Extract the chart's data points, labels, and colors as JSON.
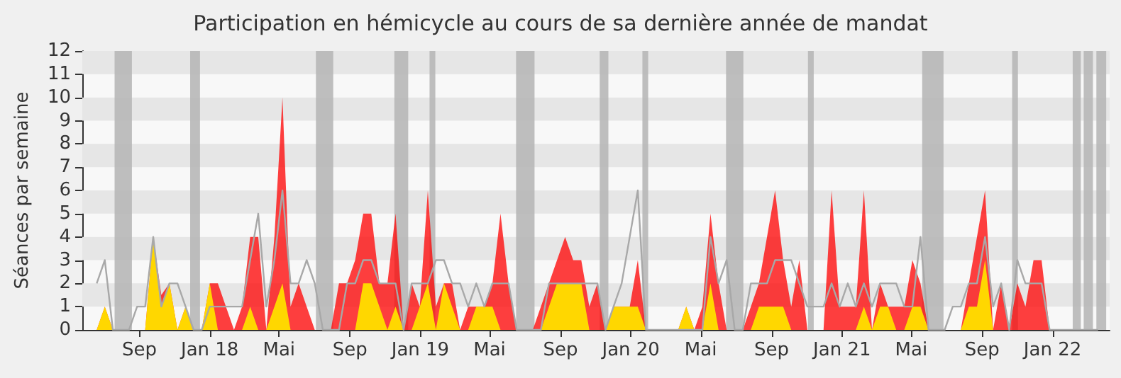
{
  "chart_data": {
    "type": "area",
    "title": "Participation en hémicycle au cours de sa dernière année de mandat",
    "ylabel": "Séances par semaine",
    "xlim": [
      "2017-05-25",
      "2022-04-10"
    ],
    "xticks": [
      {
        "value": "2017-09-01",
        "label": "Sep"
      },
      {
        "value": "2018-01-01",
        "label": "Jan 18"
      },
      {
        "value": "2018-05-01",
        "label": "Mai"
      },
      {
        "value": "2018-09-01",
        "label": "Sep"
      },
      {
        "value": "2019-01-01",
        "label": "Jan 19"
      },
      {
        "value": "2019-05-01",
        "label": "Mai"
      },
      {
        "value": "2019-09-01",
        "label": "Sep"
      },
      {
        "value": "2020-01-01",
        "label": "Jan 20"
      },
      {
        "value": "2020-05-01",
        "label": "Mai"
      },
      {
        "value": "2020-09-01",
        "label": "Sep"
      },
      {
        "value": "2021-01-01",
        "label": "Jan 21"
      },
      {
        "value": "2021-05-01",
        "label": "Mai"
      },
      {
        "value": "2021-09-01",
        "label": "Sep"
      },
      {
        "value": "2022-01-01",
        "label": "Jan 22"
      }
    ],
    "ylim": [
      0,
      12
    ],
    "yticks": [
      0,
      1,
      2,
      3,
      4,
      5,
      6,
      7,
      8,
      9,
      10,
      11,
      12
    ],
    "grid": false,
    "marker": "none",
    "x": [
      "2017-06-19",
      "2017-07-03",
      "2017-07-17",
      "2017-07-31",
      "2017-08-14",
      "2017-08-28",
      "2017-09-11",
      "2017-09-25",
      "2017-10-09",
      "2017-10-23",
      "2017-11-06",
      "2017-11-20",
      "2017-12-04",
      "2017-12-18",
      "2018-01-01",
      "2018-01-15",
      "2018-01-29",
      "2018-02-12",
      "2018-02-26",
      "2018-03-12",
      "2018-03-26",
      "2018-04-09",
      "2018-04-23",
      "2018-05-07",
      "2018-05-21",
      "2018-06-04",
      "2018-06-18",
      "2018-07-02",
      "2018-07-16",
      "2018-07-30",
      "2018-08-13",
      "2018-08-27",
      "2018-09-10",
      "2018-09-24",
      "2018-10-08",
      "2018-10-22",
      "2018-11-05",
      "2018-11-19",
      "2018-12-03",
      "2018-12-17",
      "2018-12-31",
      "2019-01-14",
      "2019-01-28",
      "2019-02-11",
      "2019-02-25",
      "2019-03-11",
      "2019-03-25",
      "2019-04-08",
      "2019-04-22",
      "2019-05-06",
      "2019-05-20",
      "2019-06-03",
      "2019-06-17",
      "2019-07-01",
      "2019-07-15",
      "2019-07-29",
      "2019-08-12",
      "2019-08-26",
      "2019-09-09",
      "2019-09-23",
      "2019-10-07",
      "2019-10-21",
      "2019-11-04",
      "2019-11-18",
      "2019-12-02",
      "2019-12-16",
      "2019-12-30",
      "2020-01-13",
      "2020-01-27",
      "2020-02-10",
      "2020-02-24",
      "2020-03-09",
      "2020-03-23",
      "2020-04-06",
      "2020-04-20",
      "2020-05-04",
      "2020-05-18",
      "2020-06-01",
      "2020-06-15",
      "2020-06-29",
      "2020-07-13",
      "2020-07-27",
      "2020-08-10",
      "2020-08-24",
      "2020-09-07",
      "2020-09-21",
      "2020-10-05",
      "2020-10-19",
      "2020-11-02",
      "2020-11-16",
      "2020-11-30",
      "2020-12-14",
      "2020-12-28",
      "2021-01-11",
      "2021-01-25",
      "2021-02-08",
      "2021-02-22",
      "2021-03-08",
      "2021-03-22",
      "2021-04-05",
      "2021-04-19",
      "2021-05-03",
      "2021-05-17",
      "2021-05-31",
      "2021-06-14",
      "2021-06-28",
      "2021-07-12",
      "2021-07-26",
      "2021-08-09",
      "2021-08-23",
      "2021-09-06",
      "2021-09-20",
      "2021-10-04",
      "2021-10-18",
      "2021-11-01",
      "2021-11-15",
      "2021-11-29",
      "2021-12-13",
      "2021-12-27",
      "2022-01-10",
      "2022-01-24",
      "2022-02-07",
      "2022-02-21",
      "2022-03-07",
      "2022-03-21"
    ],
    "series": [
      {
        "type": "line",
        "color": "#a8a8a8",
        "values": [
          2,
          3,
          0,
          0,
          0,
          1,
          1,
          4,
          1,
          2,
          2,
          1,
          0,
          0,
          1,
          1,
          1,
          1,
          1,
          3,
          5,
          1,
          3,
          6,
          2,
          2,
          3,
          2,
          0,
          0,
          0,
          2,
          2,
          3,
          3,
          2,
          2,
          2,
          0,
          2,
          2,
          2,
          3,
          3,
          2,
          2,
          1,
          2,
          1,
          2,
          2,
          2,
          0,
          0,
          0,
          0,
          2,
          2,
          2,
          2,
          2,
          2,
          2,
          0,
          1,
          2,
          4,
          6,
          0,
          0,
          0,
          0,
          0,
          0,
          0,
          0,
          4,
          2,
          3,
          0,
          0,
          2,
          2,
          2,
          3,
          3,
          3,
          2,
          1,
          1,
          1,
          2,
          1,
          2,
          1,
          2,
          1,
          2,
          2,
          2,
          1,
          1,
          4,
          0,
          0,
          0,
          1,
          1,
          2,
          2,
          4,
          1,
          2,
          0,
          3,
          2,
          2,
          2,
          0,
          0,
          0,
          0,
          0,
          0,
          0
        ]
      },
      {
        "color": "#ff0000",
        "values": [
          0,
          1,
          0,
          0,
          0,
          0,
          0,
          4,
          1.5,
          2,
          0,
          1,
          0,
          0,
          2,
          2,
          1,
          0,
          1,
          4,
          4,
          0,
          4,
          10,
          1,
          2,
          1,
          0,
          0,
          0,
          2,
          2,
          3,
          5,
          5,
          2,
          2,
          5,
          0,
          2,
          1,
          6,
          1,
          2,
          2,
          0,
          1,
          1,
          1,
          2,
          5,
          2,
          0,
          0,
          0,
          1,
          2,
          3,
          4,
          3,
          3,
          1,
          2,
          0,
          1,
          1,
          1,
          3,
          0,
          0,
          0,
          0,
          0,
          1,
          0,
          1,
          5,
          2,
          0,
          0,
          0,
          1,
          2,
          4,
          6,
          3,
          1,
          3,
          0,
          0,
          0,
          6,
          1,
          1,
          1,
          6,
          0,
          2,
          1,
          1,
          1,
          3,
          2,
          0,
          0,
          0,
          0,
          0,
          2,
          4,
          6,
          0,
          2,
          0,
          2,
          1,
          3,
          3,
          0,
          0,
          0,
          0,
          0,
          0,
          0
        ]
      },
      {
        "color": "#ffd700",
        "values": [
          0,
          1,
          0,
          0,
          0,
          0,
          0,
          4,
          1,
          2,
          0,
          1,
          0,
          0,
          2,
          0,
          0,
          0,
          0,
          1,
          0,
          0,
          1,
          2,
          0,
          0,
          0,
          0,
          0,
          0,
          0,
          0,
          0,
          2,
          2,
          1,
          0,
          1,
          0,
          0,
          1,
          2,
          0,
          2,
          1,
          0,
          0,
          1,
          1,
          1,
          0,
          0,
          0,
          0,
          0,
          0,
          1,
          2,
          2,
          2,
          2,
          0,
          0,
          0,
          1,
          1,
          1,
          1,
          0,
          0,
          0,
          0,
          0,
          1,
          0,
          0,
          2,
          0,
          0,
          0,
          0,
          0,
          1,
          1,
          1,
          1,
          0,
          0,
          0,
          0,
          0,
          0,
          0,
          0,
          0,
          1,
          0,
          1,
          1,
          0,
          0,
          1,
          1,
          0,
          0,
          0,
          0,
          0,
          1,
          1,
          3,
          0,
          0,
          0,
          0,
          0,
          0,
          0,
          0,
          0,
          0,
          0,
          0,
          0,
          0
        ]
      }
    ],
    "bands": [
      {
        "axis": "y",
        "from": 11,
        "to": 12,
        "color": "#e6e6e6"
      },
      {
        "axis": "y",
        "from": 9,
        "to": 10,
        "color": "#e6e6e6"
      },
      {
        "axis": "y",
        "from": 7,
        "to": 8,
        "color": "#e6e6e6"
      },
      {
        "axis": "y",
        "from": 5,
        "to": 6,
        "color": "#e6e6e6"
      },
      {
        "axis": "y",
        "from": 3,
        "to": 4,
        "color": "#e6e6e6"
      },
      {
        "axis": "y",
        "from": 1,
        "to": 2,
        "color": "#e6e6e6"
      },
      {
        "axis": "x",
        "from": "2017-07-20",
        "to": "2017-08-19",
        "color": "#b4b4b4"
      },
      {
        "axis": "x",
        "from": "2017-11-28",
        "to": "2017-12-15",
        "color": "#b4b4b4"
      },
      {
        "axis": "x",
        "from": "2018-07-04",
        "to": "2018-08-03",
        "color": "#b4b4b4"
      },
      {
        "axis": "x",
        "from": "2018-11-17",
        "to": "2018-12-11",
        "color": "#b4b4b4"
      },
      {
        "axis": "x",
        "from": "2019-01-17",
        "to": "2019-01-27",
        "color": "#b4b4b4"
      },
      {
        "axis": "x",
        "from": "2019-06-16",
        "to": "2019-07-18",
        "color": "#b4b4b4"
      },
      {
        "axis": "x",
        "from": "2019-11-08",
        "to": "2019-11-23",
        "color": "#b4b4b4"
      },
      {
        "axis": "x",
        "from": "2020-01-21",
        "to": "2020-01-31",
        "color": "#b4b4b4"
      },
      {
        "axis": "x",
        "from": "2020-06-14",
        "to": "2020-07-14",
        "color": "#b4b4b4"
      },
      {
        "axis": "x",
        "from": "2020-11-03",
        "to": "2020-11-13",
        "color": "#b4b4b4"
      },
      {
        "axis": "x",
        "from": "2021-05-20",
        "to": "2021-06-26",
        "color": "#b4b4b4"
      },
      {
        "axis": "x",
        "from": "2021-10-23",
        "to": "2021-11-02",
        "color": "#b4b4b4"
      },
      {
        "axis": "x",
        "from": "2022-02-05",
        "to": "2022-02-19",
        "color": "#b4b4b4"
      },
      {
        "axis": "x",
        "from": "2022-02-24",
        "to": "2022-03-12",
        "color": "#b4b4b4"
      },
      {
        "axis": "x",
        "from": "2022-03-18",
        "to": "2022-04-04",
        "color": "#b4b4b4"
      }
    ]
  }
}
